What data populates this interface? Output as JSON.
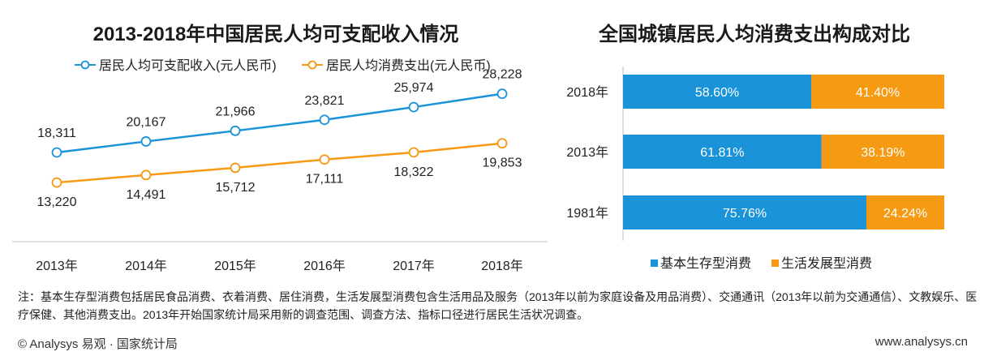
{
  "left_chart": {
    "title": "2013-2018年中国居民人均可支配收入情况"
  },
  "right_chart": {
    "title": "全国城镇居民人均消费支出构成对比"
  },
  "colors": {
    "blue": "#1a93d8",
    "orange": "#f59a12",
    "axis": "#bfbfbf"
  },
  "chart_data": [
    {
      "type": "line",
      "title": "2013-2018年中国居民人均可支配收入情况",
      "categories": [
        "2013年",
        "2014年",
        "2015年",
        "2016年",
        "2017年",
        "2018年"
      ],
      "series": [
        {
          "name": "居民人均可支配收入(元人民币)",
          "values": [
            18311,
            20167,
            21966,
            23821,
            25974,
            28228
          ],
          "labels": [
            "18,311",
            "20,167",
            "21,966",
            "23,821",
            "25,974",
            "28,228"
          ],
          "color": "#1a93d8"
        },
        {
          "name": "居民人均消费支出(元人民币)",
          "values": [
            13220,
            14491,
            15712,
            17111,
            18322,
            19853
          ],
          "labels": [
            "13,220",
            "14,491",
            "15,712",
            "17,111",
            "18,322",
            "19,853"
          ],
          "color": "#f59a12"
        }
      ],
      "legend": "top-left",
      "grid": false
    },
    {
      "type": "bar",
      "orientation": "horizontal-stacked-100",
      "title": "全国城镇居民人均消费支出构成对比",
      "categories": [
        "2018年",
        "2013年",
        "1981年"
      ],
      "series": [
        {
          "name": "基本生存型消费",
          "values": [
            58.6,
            61.81,
            75.76
          ],
          "labels": [
            "58.60%",
            "61.81%",
            "75.76%"
          ],
          "color": "#1a93d8"
        },
        {
          "name": "生活发展型消费",
          "values": [
            41.4,
            38.19,
            24.24
          ],
          "labels": [
            "41.40%",
            "38.19%",
            "24.24%"
          ],
          "color": "#f59a12"
        }
      ],
      "legend": "bottom",
      "grid": false
    }
  ],
  "note": "注：基本生存型消费包括居民食品消费、衣着消费、居住消费，生活发展型消费包含生活用品及服务（2013年以前为家庭设备及用品消费）、交通通讯（2013年以前为交通通信）、文教娱乐、医疗保健、其他消费支出。2013年开始国家统计局采用新的调查范围、调查方法、指标口径进行居民生活状况调查。",
  "footer": {
    "source": "© Analysys 易观 · 国家统计局",
    "site": "www.analysys.cn"
  }
}
